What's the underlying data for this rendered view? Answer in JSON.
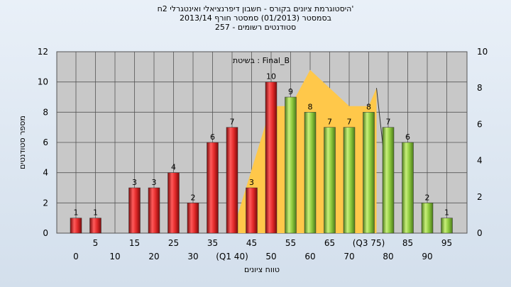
{
  "title": {
    "line1": "היסטוגרמת ציונים בקורס - חשבון דיפרנציאלי ואינטגרלי 2ח'",
    "line2": "בסמסטר (01/2013) סמסטר חורף 2013/14",
    "line3": "סטודנטים רשומים - 257"
  },
  "colors": {
    "plot_bg": "#c8c8c8",
    "area_fill": "#ffc84a",
    "bar_red": "#e02828",
    "bar_green": "#8cc83c",
    "background": "#dfe8f2"
  },
  "chart_data": {
    "type": "bar",
    "title": "היסטוגרמת ציונים בקורס - חשבון דיפרנציאלי ואינטגרלי 2ח'",
    "annotation": "בשיטת : Final_B",
    "xlabel": "טווח ציונים",
    "ylabel": "מספר סטודנטים",
    "ylim": [
      0,
      12
    ],
    "y2lim": [
      0,
      10
    ],
    "yticks": [
      0,
      2,
      4,
      6,
      8,
      10,
      12
    ],
    "y2ticks": [
      0,
      2,
      4,
      6,
      8,
      10
    ],
    "grid": true,
    "categories": [
      "0",
      "5",
      "10",
      "15",
      "20",
      "25",
      "30",
      "35",
      "40",
      "45",
      "50",
      "55",
      "60",
      "65",
      "70",
      "75",
      "80",
      "85",
      "90",
      "95"
    ],
    "x_tick_labels": [
      "0",
      "5",
      "10",
      "15",
      "20",
      "25",
      "30",
      "35",
      "(Q1 40)",
      "45",
      "50",
      "55",
      "60",
      "65",
      "70",
      "(Q3 75)",
      "80",
      "85",
      "90",
      "95"
    ],
    "values": [
      1,
      1,
      0,
      3,
      3,
      4,
      2,
      6,
      7,
      3,
      10,
      9,
      8,
      7,
      7,
      8,
      7,
      6,
      2,
      1
    ],
    "data_labels": [
      "1",
      "1",
      "0",
      "3",
      "3",
      "4",
      "2",
      "6",
      "7",
      "3",
      "10",
      "9",
      "8",
      "7",
      "7",
      "8",
      "7",
      "6",
      "2",
      "1"
    ],
    "bar_colors": [
      "red",
      "red",
      "red",
      "red",
      "red",
      "red",
      "red",
      "red",
      "red",
      "red",
      "red",
      "green",
      "green",
      "green",
      "green",
      "green",
      "green",
      "green",
      "green",
      "green"
    ],
    "area_series": {
      "axis": "right",
      "x": [
        40,
        50,
        55,
        60,
        65,
        70,
        75,
        77
      ],
      "values": [
        0,
        7,
        7,
        9,
        8,
        7,
        7,
        8
      ]
    }
  }
}
